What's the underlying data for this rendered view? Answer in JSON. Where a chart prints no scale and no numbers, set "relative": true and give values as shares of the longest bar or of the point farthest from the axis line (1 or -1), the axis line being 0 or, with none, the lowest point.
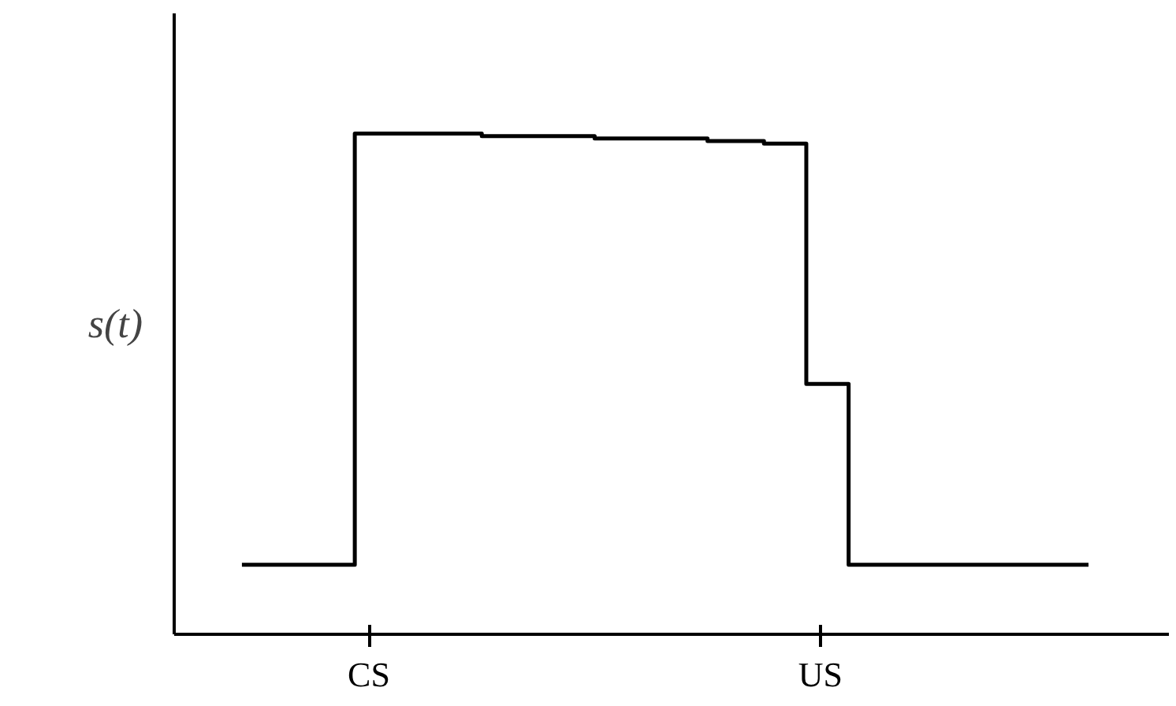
{
  "chart_data": {
    "type": "step",
    "relative": true,
    "ylabel": "s(t)",
    "tick_labels": "x",
    "marker": "none",
    "line_style": "solid",
    "categories": [
      null,
      null,
      null,
      null,
      null,
      null,
      null,
      null,
      null,
      "CS",
      null,
      null,
      null,
      null,
      null,
      null,
      null,
      null,
      null,
      null,
      null,
      null,
      null,
      null,
      null,
      null,
      null,
      null,
      null,
      null,
      null,
      null,
      null,
      null,
      null,
      null,
      null,
      null,
      null,
      null,
      null,
      "US",
      null,
      null,
      null,
      null,
      null,
      null,
      null,
      null,
      null,
      null,
      null,
      null,
      null,
      null,
      null,
      null,
      null,
      null,
      null
    ],
    "series": [
      {
        "color": "#000000",
        "values": [
          0.139,
          0.139,
          0.139,
          0.139,
          0.139,
          0.139,
          0.139,
          0.139,
          0.139,
          1.0,
          1.0,
          1.0,
          1.0,
          1.0,
          1.0,
          1.0,
          1.0,
          1.0,
          0.995,
          0.995,
          0.995,
          0.995,
          0.995,
          0.995,
          0.995,
          0.995,
          0.99,
          0.99,
          0.99,
          0.99,
          0.99,
          0.99,
          0.99,
          0.99,
          0.985,
          0.985,
          0.985,
          0.985,
          0.98,
          0.98,
          0.98,
          0.5,
          0.5,
          0.5,
          0.139,
          0.139,
          0.139,
          0.139,
          0.139,
          0.139,
          0.139,
          0.139,
          0.139,
          0.139,
          0.139,
          0.139,
          0.139,
          0.139,
          0.139,
          0.139,
          0.139
        ]
      }
    ]
  }
}
